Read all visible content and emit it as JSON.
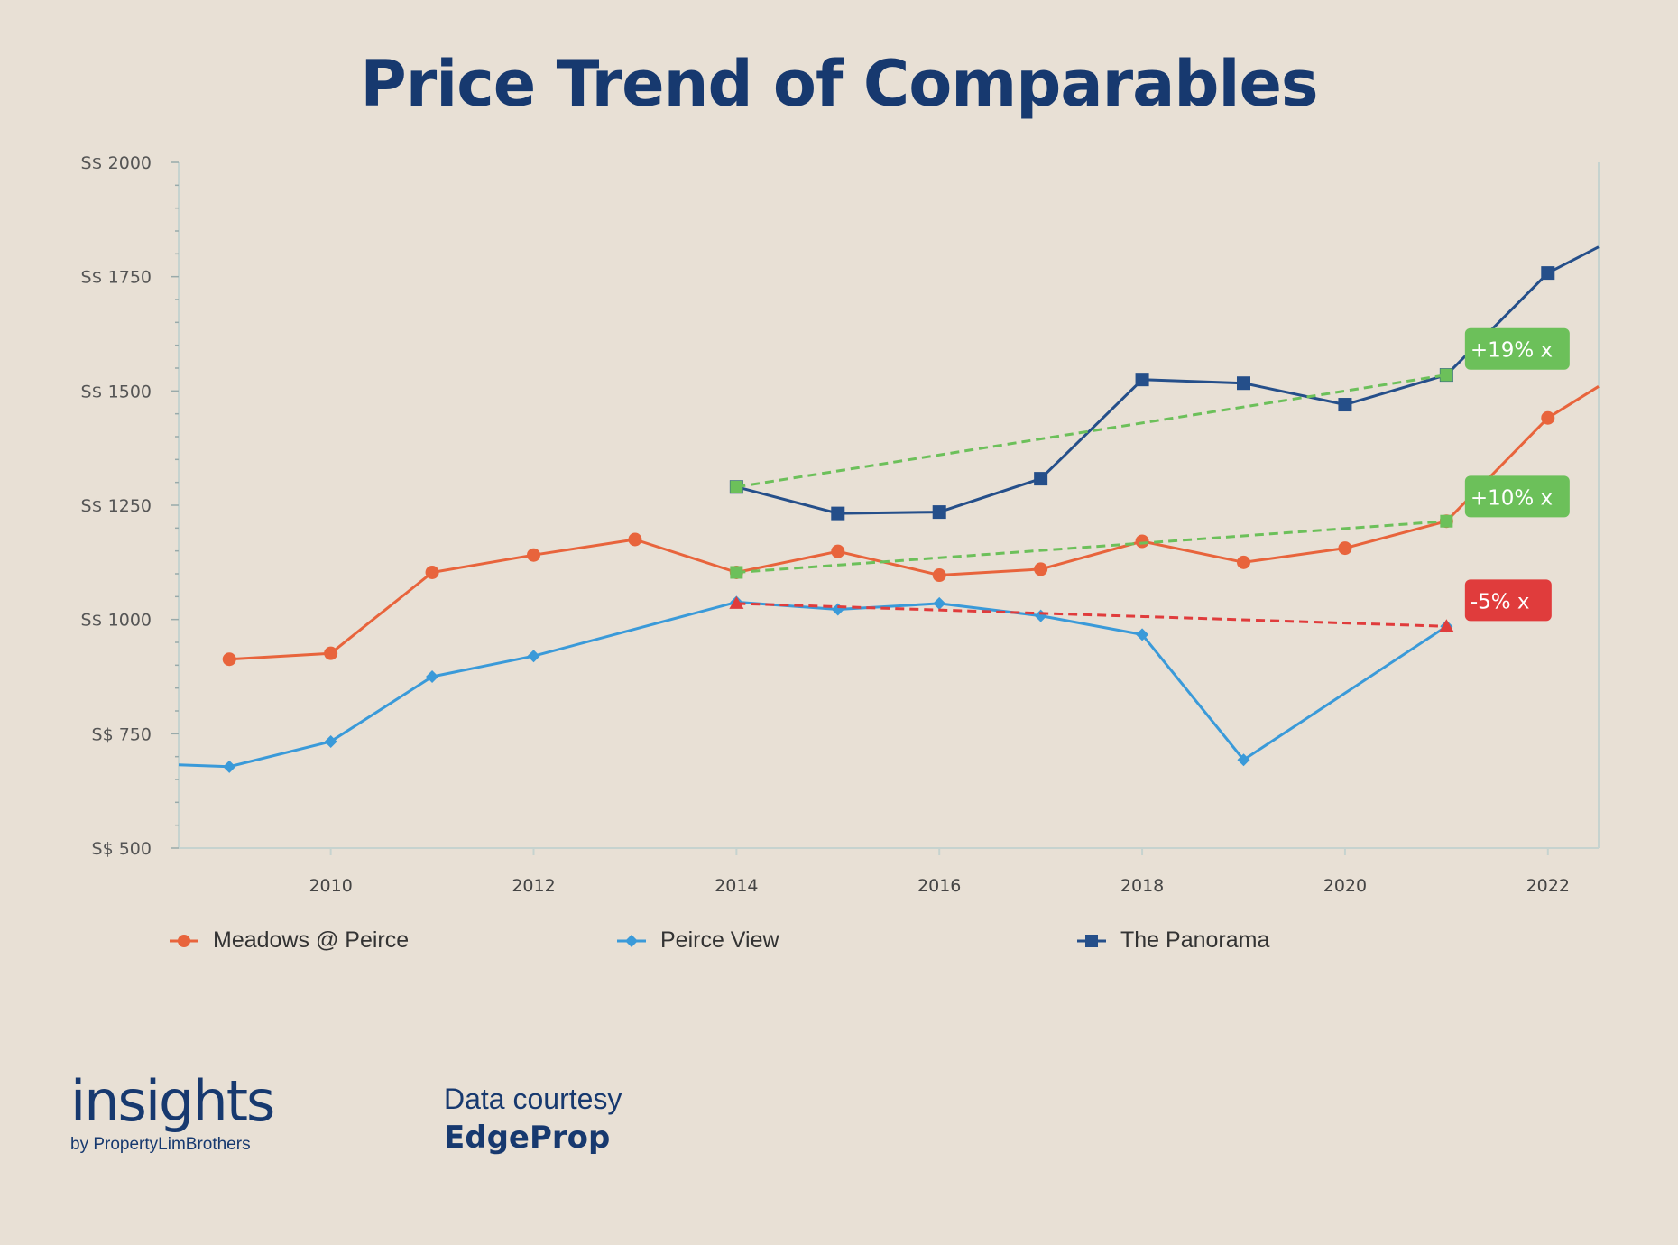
{
  "header": {
    "title": "Price Trend of Comparables"
  },
  "chart_data": {
    "type": "line",
    "title": "Price Trend of Comparables",
    "xlim": [
      2008.5,
      2022.5
    ],
    "ylim": [
      500,
      2000
    ],
    "y_ticks": [
      500,
      750,
      1000,
      1250,
      1500,
      1750,
      2000
    ],
    "y_tick_labels": [
      "S$ 500",
      "S$ 750",
      "S$ 1000",
      "S$ 1250",
      "S$ 1500",
      "S$ 1750",
      "S$ 2000"
    ],
    "x_ticks": [
      2010,
      2012,
      2014,
      2016,
      2018,
      2020,
      2022
    ],
    "x_tick_labels": [
      "2010",
      "2012",
      "2014",
      "2016",
      "2018",
      "2020",
      "2022"
    ],
    "legend_position": "bottom",
    "series": [
      {
        "name": "Meadows @ Peirce",
        "color": "#e8643c",
        "marker": "circle",
        "x": [
          2009,
          2010,
          2011,
          2012,
          2013,
          2014,
          2015,
          2016,
          2017,
          2018,
          2019,
          2020,
          2021,
          2022,
          2022.5
        ],
        "y": [
          913,
          926,
          1103,
          1141,
          1175,
          1103,
          1149,
          1097,
          1110,
          1171,
          1125,
          1156,
          1215,
          1441,
          1510
        ],
        "marker_last_index": 13
      },
      {
        "name": "Peirce View",
        "color": "#3a9ad9",
        "marker": "diamond",
        "x": [
          2008.5,
          2009,
          2010,
          2011,
          2012,
          2014,
          2015,
          2016,
          2017,
          2018,
          2019,
          2021
        ],
        "y": [
          682,
          678,
          733,
          875,
          920,
          1038,
          1022,
          1035,
          1008,
          967,
          693,
          985
        ],
        "marker_first_index": 1
      },
      {
        "name": "The Panorama",
        "color": "#254f8a",
        "marker": "square",
        "x": [
          2014,
          2015,
          2016,
          2017,
          2018,
          2019,
          2020,
          2021,
          2022,
          2022.5
        ],
        "y": [
          1290,
          1232,
          1235,
          1308,
          1525,
          1517,
          1470,
          1535,
          1758,
          1815
        ],
        "marker_last_index": 8
      }
    ],
    "annotations": [
      {
        "label": "+19% x",
        "color": "#6cc05a",
        "from": [
          2014,
          1290
        ],
        "to": [
          2021,
          1535
        ],
        "label_at": [
          2021.2,
          1590
        ]
      },
      {
        "label": "+10% x",
        "color": "#6cc05a",
        "from": [
          2014,
          1103
        ],
        "to": [
          2021,
          1215
        ],
        "label_at": [
          2021.2,
          1267
        ]
      },
      {
        "label": "-5%   x",
        "color": "#e03c3c",
        "from": [
          2014,
          1035
        ],
        "to": [
          2021,
          985
        ],
        "label_at": [
          2021.2,
          1040
        ]
      }
    ]
  },
  "legend": {
    "items": [
      {
        "label": "Meadows @ Peirce",
        "color": "#e8643c",
        "marker": "circle"
      },
      {
        "label": "Peirce View",
        "color": "#3a9ad9",
        "marker": "diamond"
      },
      {
        "label": "The Panorama",
        "color": "#254f8a",
        "marker": "square"
      }
    ]
  },
  "footer": {
    "logo_word": "insights",
    "logo_sub": "by PropertyLimBrothers",
    "courtesy_label": "Data courtesy",
    "courtesy_source": "EdgeProp"
  }
}
